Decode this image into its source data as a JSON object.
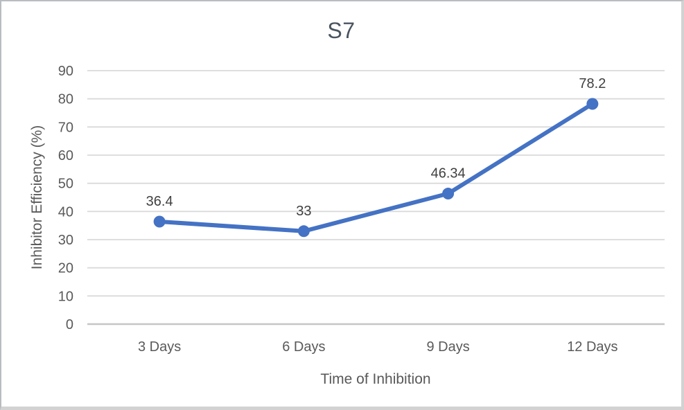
{
  "chart_data": {
    "type": "line",
    "title": "S7",
    "xlabel": "Time of Inhibition",
    "ylabel": "Inhibitor Efficiency (%)",
    "categories": [
      "3 Days",
      "6 Days",
      "9 Days",
      "12 Days"
    ],
    "series": [
      {
        "name": "S7",
        "values": [
          36.4,
          33,
          46.34,
          78.2
        ],
        "data_labels": [
          "36.4",
          "33",
          "46.34",
          "78.2"
        ]
      }
    ],
    "ylim": [
      0,
      90
    ],
    "yticks": [
      0,
      10,
      20,
      30,
      40,
      50,
      60,
      70,
      80,
      90
    ],
    "grid": true,
    "legend_position": "none",
    "colors": {
      "line": "#4472C4",
      "marker": "#4472C4",
      "gridline": "#D9D9D9",
      "axis_line": "#C6C6C6",
      "tick_text": "#595959",
      "data_label_text": "#404040",
      "title_text": "#4A545F"
    }
  }
}
